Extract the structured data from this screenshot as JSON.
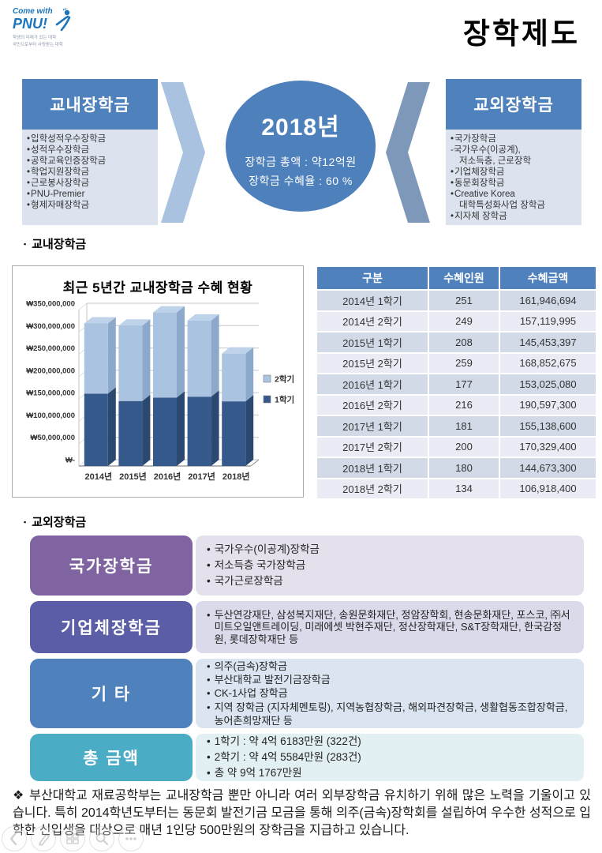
{
  "page": {
    "title": "장학제도"
  },
  "logo": {
    "come_with": "Come with",
    "pnu": "PNU!",
    "tagline1": "학생의 미래가 있는 대학",
    "tagline2": "국민으로부터 사랑받는 대학"
  },
  "ui": {
    "square_bullet": "▪",
    "bullet": "•"
  },
  "sections": {
    "on_campus": "교내장학금",
    "off_campus": "교외장학금"
  },
  "diagram": {
    "left_box": {
      "title": "교내장학금",
      "items": [
        {
          "bullet": true,
          "indent": false,
          "text": "입학성적우수장학금"
        },
        {
          "bullet": true,
          "indent": false,
          "text": "성적우수장학금"
        },
        {
          "bullet": true,
          "indent": false,
          "text": "공학교육인증장학금"
        },
        {
          "bullet": true,
          "indent": false,
          "text": "학업지원장학금"
        },
        {
          "bullet": true,
          "indent": false,
          "text": "근로봉사장학금"
        },
        {
          "bullet": true,
          "indent": false,
          "text": "PNU-Premier"
        },
        {
          "bullet": true,
          "indent": false,
          "text": "형제자매장학금"
        }
      ]
    },
    "circle": {
      "year": "2018년",
      "total": "장학금 총액 : 약12억원",
      "rate": "장학금 수혜율 : 60 %"
    },
    "right_box": {
      "title": "교외장학금",
      "items": [
        {
          "bullet": true,
          "indent": false,
          "text": "국가장학금"
        },
        {
          "bullet": false,
          "indent": false,
          "text": "-국가우수(이공계),"
        },
        {
          "bullet": false,
          "indent": true,
          "text": "저소득층, 근로장학"
        },
        {
          "bullet": true,
          "indent": false,
          "text": "기업체장학금"
        },
        {
          "bullet": true,
          "indent": false,
          "text": "동문회장학금"
        },
        {
          "bullet": true,
          "indent": false,
          "text": "Creative Korea"
        },
        {
          "bullet": false,
          "indent": true,
          "text": "대학특성화사업 장학금"
        },
        {
          "bullet": true,
          "indent": false,
          "text": "지자체 장학금"
        }
      ]
    }
  },
  "chart_data": {
    "type": "bar",
    "stacked": true,
    "title": "최근 5년간 교내장학금 수혜 현황",
    "categories": [
      "2014년",
      "2015년",
      "2016년",
      "2017년",
      "2018년"
    ],
    "series": [
      {
        "name": "1학기",
        "values": [
          161946694,
          145453397,
          153025080,
          155138600,
          144673300
        ],
        "color": "#36598C",
        "side": "#2B4870",
        "top": "#4F719E"
      },
      {
        "name": "2학기",
        "values": [
          157119995,
          168852675,
          190597300,
          170329400,
          106918400
        ],
        "color": "#A9C3E0",
        "side": "#8CA9CB",
        "top": "#BED3EA"
      }
    ],
    "xlabel": "",
    "ylabel": "",
    "ylim": [
      0,
      350000000
    ],
    "ytick_step": 50000000,
    "ytick_labels": [
      "₩-",
      "₩50,000,000",
      "₩100,000,000",
      "₩150,000,000",
      "₩200,000,000",
      "₩250,000,000",
      "₩300,000,000",
      "₩350,000,000"
    ],
    "grid": true,
    "legend_position": "right",
    "legend_order": [
      "2학기",
      "1학기"
    ]
  },
  "table": {
    "headers": [
      "구분",
      "수혜인원",
      "수혜금액"
    ],
    "rows": [
      [
        "2014년 1학기",
        "251",
        "161,946,694"
      ],
      [
        "2014년 2학기",
        "249",
        "157,119,995"
      ],
      [
        "2015년 1학기",
        "208",
        "145,453,397"
      ],
      [
        "2015년 2학기",
        "259",
        "168,852,675"
      ],
      [
        "2016년 1학기",
        "177",
        "153,025,080"
      ],
      [
        "2016년 2학기",
        "216",
        "190,597,300"
      ],
      [
        "2017년 1학기",
        "181",
        "155,138,600"
      ],
      [
        "2017년 2학기",
        "200",
        "170,329,400"
      ],
      [
        "2018년 1학기",
        "180",
        "144,673,300"
      ],
      [
        "2018년 2학기",
        "134",
        "106,918,400"
      ]
    ]
  },
  "off_campus": {
    "rows": [
      {
        "title": "국가장학금",
        "color": "#8064A2",
        "bg": "#E5E1EC",
        "items": [
          "국가우수(이공계)장학금",
          "저소득층 국가장학금",
          "국가근로장학금"
        ]
      },
      {
        "title": "기업체장학금",
        "color": "#5B5EA6",
        "bg": "#DBDAEB",
        "items": [
          "두산연강재단, 삼성복지재단, 송원문화재단, 정암장학회, 현송문화재단, 포스코, ㈜서미트오일앤트레이딩, 미래에셋 박현주재단, 정산장학재단, S&T장학재단, 한국감정원, 롯데장학재단 등"
        ]
      },
      {
        "title": "기 타",
        "color": "#4F81BD",
        "bg": "#DBE5F1",
        "items": [
          "의주(금속)장학금",
          "부산대학교 발전기금장학금",
          "CK-1사업 장학금",
          "지역 장학금 (지자체멘토링), 지역농협장학금, 해외파견장학금, 생활협동조합장학금, 농어촌희망재단 등"
        ]
      },
      {
        "title": "총 금액",
        "color": "#4BACC6",
        "bg": "#E3F0F3",
        "items": [
          "1학기 : 약 4억 6183만원 (322건)",
          "2학기 : 약 4억 5584만원 (283건)",
          "총 약 9억 1767만원"
        ]
      }
    ]
  },
  "footnote": {
    "marker": "❖",
    "text": "부산대학교 재료공학부는 교내장학금 뿐만 아니라 여러 외부장학금 유치하기 위해 많은 노력을 기울이고 있습니다. 특히 2014학년도부터는 동문회 발전기금 모금을 통해 의주(금속)장학회를 설립하여 우수한 성적으로 입학한 신입생을 대상으로 매년 1인당 500만원의 장학금을 지급하고 있습니다."
  },
  "colors": {
    "accent_blue": "#4F81BD",
    "box_body": "#DCE3EF",
    "chevron_light": "#A8C2DF",
    "chevron_dark": "#7E98B9",
    "table_row_odd": "#D2DAE8",
    "table_row_even": "#E9ECF4"
  }
}
